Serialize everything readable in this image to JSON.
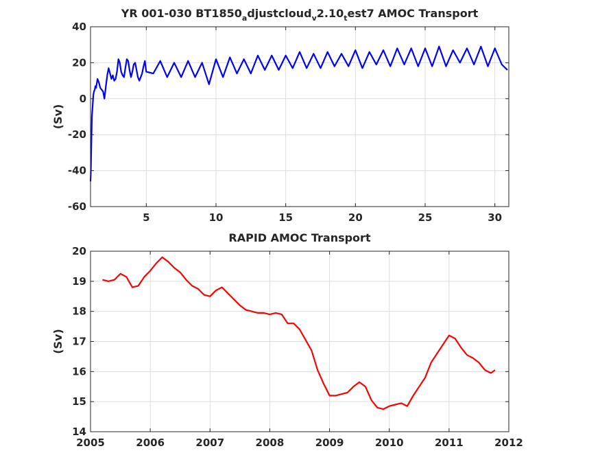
{
  "chart_data": [
    {
      "type": "line",
      "title_parts": [
        "YR 001-030 BT1850",
        "a",
        "djustcloud",
        "v",
        "2.10",
        "t",
        "est7 AMOC Transport"
      ],
      "xlabel": "",
      "ylabel": "(Sv)",
      "xlim": [
        1,
        31
      ],
      "ylim": [
        -60,
        40
      ],
      "xticks": [
        "5",
        "10",
        "15",
        "20",
        "25",
        "30"
      ],
      "yticks": [
        "40",
        "20",
        "0",
        "-20",
        "-40",
        "-60"
      ],
      "color": "#0000ff",
      "grid": true,
      "series": [
        {
          "x": [
            1.0,
            1.02,
            1.05,
            1.08,
            1.1,
            1.15,
            1.2,
            1.25,
            1.3,
            1.35,
            1.4,
            1.5,
            1.6,
            1.7,
            1.8,
            1.9,
            2.0,
            2.1,
            2.2,
            2.3,
            2.4,
            2.5,
            2.6,
            2.7,
            2.8,
            2.9,
            3.0,
            3.1,
            3.2,
            3.3,
            3.4,
            3.5,
            3.6,
            3.7,
            3.8,
            3.9,
            4.0,
            4.1,
            4.2,
            4.3,
            4.4,
            4.5,
            4.6,
            4.7,
            4.8,
            4.9,
            5.0,
            5.5,
            6.0,
            6.5,
            7.0,
            7.5,
            8.0,
            8.5,
            9.0,
            9.5,
            10.0,
            10.5,
            11.0,
            11.5,
            12.0,
            12.5,
            13.0,
            13.5,
            14.0,
            14.5,
            15.0,
            15.5,
            16.0,
            16.5,
            17.0,
            17.5,
            18.0,
            18.5,
            19.0,
            19.5,
            20.0,
            20.5,
            21.0,
            21.5,
            22.0,
            22.5,
            23.0,
            23.5,
            24.0,
            24.5,
            25.0,
            25.5,
            26.0,
            26.5,
            27.0,
            27.5,
            28.0,
            28.5,
            29.0,
            29.5,
            30.0,
            30.5,
            30.9
          ],
          "y": [
            -46,
            -42,
            -30,
            -18,
            -10,
            -4,
            2,
            4,
            5,
            7,
            6,
            11,
            9,
            6,
            5,
            4,
            0,
            7,
            13,
            17,
            14,
            11,
            13,
            10,
            11,
            15,
            22,
            20,
            15,
            13,
            12,
            17,
            22,
            21,
            16,
            12,
            15,
            19,
            20,
            16,
            12,
            10,
            12,
            14,
            18,
            21,
            15,
            14,
            21,
            12,
            20,
            12,
            21,
            12,
            20,
            8,
            22,
            12,
            23,
            14,
            22,
            14,
            24,
            16,
            24,
            16,
            24,
            17,
            26,
            17,
            25,
            17,
            26,
            18,
            25,
            18,
            27,
            17,
            26,
            19,
            27,
            18,
            28,
            19,
            28,
            18,
            28,
            18,
            29,
            18,
            27,
            20,
            28,
            19,
            29,
            18,
            28,
            19,
            16
          ]
        }
      ]
    },
    {
      "type": "line",
      "title": "RAPID AMOC Transport",
      "xlabel": "",
      "ylabel": "(Sv)",
      "xlim": [
        2005,
        2012
      ],
      "ylim": [
        14,
        20
      ],
      "xticks": [
        "2005",
        "2006",
        "2007",
        "2008",
        "2009",
        "2010",
        "2011",
        "2012"
      ],
      "yticks": [
        "20",
        "19",
        "18",
        "17",
        "16",
        "15",
        "14"
      ],
      "color": "#ff0000",
      "grid": true,
      "series": [
        {
          "x": [
            2005.2,
            2005.3,
            2005.4,
            2005.5,
            2005.6,
            2005.7,
            2005.8,
            2005.9,
            2006.0,
            2006.1,
            2006.2,
            2006.3,
            2006.4,
            2006.5,
            2006.6,
            2006.7,
            2006.8,
            2006.9,
            2007.0,
            2007.1,
            2007.2,
            2007.3,
            2007.4,
            2007.5,
            2007.6,
            2007.7,
            2007.8,
            2007.9,
            2008.0,
            2008.1,
            2008.2,
            2008.3,
            2008.4,
            2008.5,
            2008.6,
            2008.7,
            2008.8,
            2008.9,
            2009.0,
            2009.1,
            2009.2,
            2009.3,
            2009.4,
            2009.5,
            2009.6,
            2009.7,
            2009.8,
            2009.9,
            2010.0,
            2010.1,
            2010.2,
            2010.3,
            2010.4,
            2010.5,
            2010.6,
            2010.7,
            2010.8,
            2010.9,
            2011.0,
            2011.1,
            2011.2,
            2011.3,
            2011.4,
            2011.5,
            2011.6,
            2011.7,
            2011.77
          ],
          "y": [
            19.05,
            19.0,
            19.05,
            19.25,
            19.15,
            18.8,
            18.85,
            19.15,
            19.35,
            19.6,
            19.8,
            19.65,
            19.45,
            19.3,
            19.05,
            18.85,
            18.75,
            18.55,
            18.5,
            18.7,
            18.8,
            18.6,
            18.4,
            18.2,
            18.05,
            18.0,
            17.95,
            17.95,
            17.9,
            17.95,
            17.9,
            17.6,
            17.6,
            17.4,
            17.05,
            16.7,
            16.05,
            15.6,
            15.2,
            15.2,
            15.25,
            15.3,
            15.5,
            15.65,
            15.5,
            15.05,
            14.8,
            14.75,
            14.85,
            14.9,
            14.95,
            14.85,
            15.2,
            15.5,
            15.8,
            16.3,
            16.6,
            16.9,
            17.2,
            17.1,
            16.8,
            16.55,
            16.45,
            16.3,
            16.05,
            15.95,
            16.05
          ]
        }
      ]
    }
  ]
}
